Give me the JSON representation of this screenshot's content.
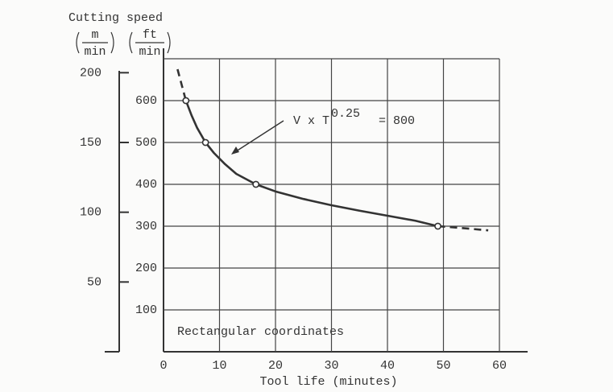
{
  "chart_data": {
    "type": "line",
    "y_label": "Cutting speed",
    "y2_unit": {
      "num": "m",
      "den": "min"
    },
    "y_unit": {
      "num": "ft",
      "den": "min"
    },
    "x_label": "Tool life (minutes)",
    "annotation": {
      "base": "V x T",
      "exponent": "0.25",
      "rest": "= 800"
    },
    "note": "Rectangular coordinates",
    "xlim": [
      0,
      60
    ],
    "xticks": [
      0,
      10,
      20,
      30,
      40,
      50,
      60
    ],
    "ylim": [
      0,
      700
    ],
    "yticks": [
      100,
      200,
      300,
      400,
      500,
      600
    ],
    "y2lim": [
      0,
      210
    ],
    "y2ticks": [
      50,
      100,
      150,
      200
    ],
    "grid": true,
    "series": [
      {
        "color": "#333333",
        "style": "solid",
        "x": [
          4,
          5,
          6,
          7.5,
          9,
          11,
          13,
          16.5,
          20,
          25,
          30,
          35,
          40,
          45,
          49
        ],
        "values": [
          600,
          565,
          535,
          500,
          475,
          448,
          425,
          400,
          383,
          365,
          350,
          337,
          325,
          313,
          300
        ]
      },
      {
        "color": "#333333",
        "style": "dashed",
        "x": [
          2.5,
          3.2,
          4
        ],
        "values": [
          675,
          640,
          600
        ]
      },
      {
        "color": "#333333",
        "style": "dashed",
        "x": [
          49,
          53,
          58
        ],
        "values": [
          300,
          296,
          290
        ]
      },
      {
        "color": "#333333",
        "style": "markers",
        "x": [
          4,
          7.5,
          16.5,
          49
        ],
        "values": [
          600,
          500,
          400,
          300
        ]
      }
    ]
  }
}
